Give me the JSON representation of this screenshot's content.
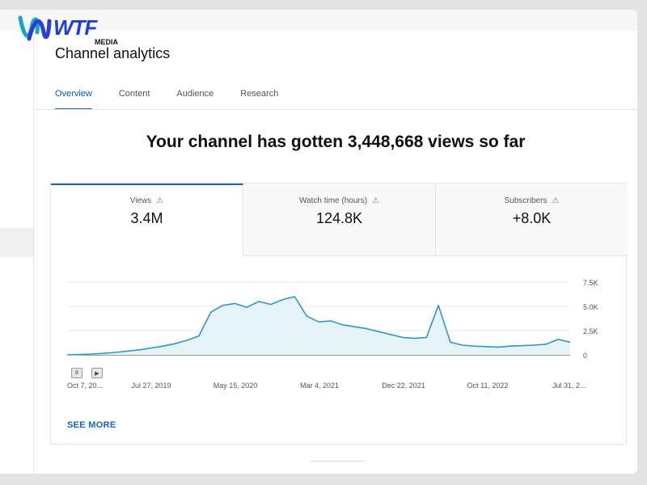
{
  "logo": {
    "text": "WTF",
    "sub": "MEDIA",
    "icon": "wave-logo-icon"
  },
  "page": {
    "title": "Channel analytics"
  },
  "tabs": [
    "Overview",
    "Content",
    "Audience",
    "Research"
  ],
  "headline": "Your channel has gotten 3,448,668 views so far",
  "metrics": [
    {
      "label": "Views",
      "value": "3.4M",
      "icon": "warning-icon"
    },
    {
      "label": "Watch time (hours)",
      "value": "124.8K",
      "icon": "warning-icon"
    },
    {
      "label": "Subscribers",
      "value": "+8.0K",
      "icon": "warning-icon"
    }
  ],
  "see_more": "SEE MORE",
  "colors": {
    "accent": "#1565c0",
    "line": "#2e97c9",
    "fill": "#e6f3f9"
  },
  "chart_data": {
    "type": "area",
    "series": [
      {
        "values": [
          0,
          30,
          80,
          150,
          250,
          380,
          520,
          700,
          900,
          1150,
          1500,
          1950,
          4400,
          5100,
          5300,
          4900,
          5500,
          5200,
          5700,
          6000,
          4000,
          3400,
          3500,
          3100,
          2900,
          2700,
          2400,
          2100,
          1800,
          1700,
          1800,
          5100,
          1300,
          1000,
          900,
          850,
          800,
          900,
          950,
          1000,
          1100,
          1600,
          1300
        ]
      }
    ],
    "x_ticks": [
      "Oct 7, 20...",
      "Jul 27, 2019",
      "May 15, 2020",
      "Mar 4, 2021",
      "Dec 22, 2021",
      "Oct 11, 2022",
      "Jul 31, 2..."
    ],
    "y_ticks": [
      "7.5K",
      "5.0K",
      "2.5K",
      "0"
    ],
    "ylim": [
      0,
      7500
    ],
    "markers": [
      "8",
      "▶"
    ]
  }
}
